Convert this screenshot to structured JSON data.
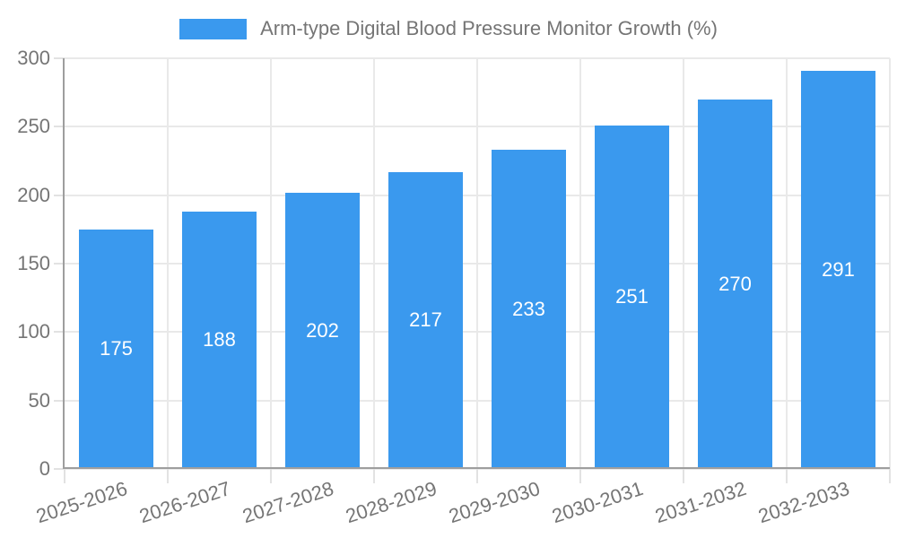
{
  "chart_data": {
    "type": "bar",
    "title": "Arm-type Digital Blood Pressure Monitor Growth (%)",
    "categories": [
      "2025-2026",
      "2026-2027",
      "2027-2028",
      "2028-2029",
      "2029-2030",
      "2030-2031",
      "2031-2032",
      "2032-2033"
    ],
    "series": [
      {
        "name": "Arm-type Digital Blood Pressure Monitor Growth (%)",
        "values": [
          175,
          188,
          202,
          217,
          233,
          251,
          270,
          291
        ]
      }
    ],
    "xlabel": "",
    "ylabel": "",
    "ylim": [
      0,
      300
    ],
    "yticks": [
      0,
      50,
      100,
      150,
      200,
      250,
      300
    ],
    "grid": true,
    "legend_position": "top",
    "value_labels": "inside-center",
    "colors": {
      "bar": "#3a99ee",
      "value_label": "#ffffff",
      "axis_text": "#757575",
      "grid_line": "#e9e9e9",
      "axis_line": "#9e9e9e",
      "background": "#ffffff"
    }
  }
}
